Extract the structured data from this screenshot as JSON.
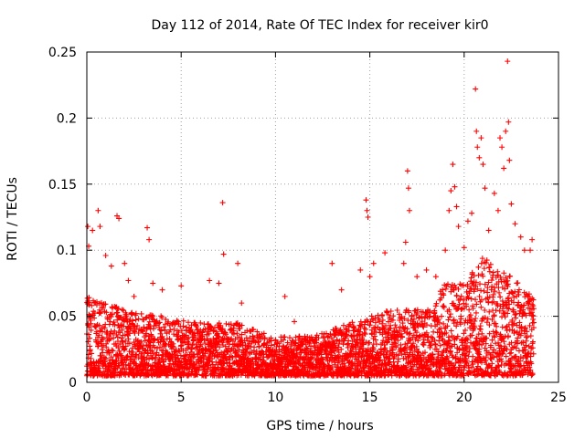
{
  "chart_data": {
    "type": "scatter",
    "title": "Day 112 of 2014, Rate Of TEC Index for receiver kir0",
    "xlabel": "GPS time / hours",
    "ylabel": "ROTI / TECUs",
    "xlim": [
      0,
      25
    ],
    "ylim": [
      0,
      0.25
    ],
    "x_ticks": [
      0,
      5,
      10,
      15,
      20,
      25
    ],
    "y_ticks": [
      0,
      0.05,
      0.1,
      0.15,
      0.2,
      0.25
    ],
    "x_tick_labels": [
      "0",
      "5",
      "10",
      "15",
      "20",
      "25"
    ],
    "y_tick_labels": [
      "0",
      "0.05",
      "0.1",
      "0.15",
      "0.2",
      "0.25"
    ],
    "grid": true,
    "marker": "+",
    "series": [
      {
        "name": "ROTI",
        "color": "#ff0000",
        "baseline_profile": {
          "hours": [
            0,
            2,
            4,
            6,
            8,
            10,
            12,
            14,
            16,
            18,
            19,
            20,
            21,
            22,
            23,
            23.7
          ],
          "typical_max": [
            0.06,
            0.05,
            0.045,
            0.04,
            0.04,
            0.03,
            0.03,
            0.04,
            0.05,
            0.05,
            0.07,
            0.07,
            0.09,
            0.08,
            0.07,
            0.06
          ]
        },
        "points": [
          [
            0.05,
            0.118
          ],
          [
            0.1,
            0.103
          ],
          [
            0.3,
            0.115
          ],
          [
            0.6,
            0.13
          ],
          [
            0.7,
            0.118
          ],
          [
            1.0,
            0.096
          ],
          [
            1.3,
            0.088
          ],
          [
            1.6,
            0.126
          ],
          [
            1.7,
            0.124
          ],
          [
            2.0,
            0.09
          ],
          [
            2.2,
            0.077
          ],
          [
            2.5,
            0.065
          ],
          [
            3.2,
            0.117
          ],
          [
            3.3,
            0.108
          ],
          [
            3.5,
            0.075
          ],
          [
            4.0,
            0.07
          ],
          [
            5.0,
            0.073
          ],
          [
            6.5,
            0.077
          ],
          [
            7.0,
            0.075
          ],
          [
            7.2,
            0.136
          ],
          [
            7.25,
            0.097
          ],
          [
            8.0,
            0.09
          ],
          [
            8.2,
            0.06
          ],
          [
            10.5,
            0.065
          ],
          [
            11.0,
            0.046
          ],
          [
            13.0,
            0.09
          ],
          [
            13.5,
            0.07
          ],
          [
            14.5,
            0.085
          ],
          [
            14.8,
            0.138
          ],
          [
            14.85,
            0.13
          ],
          [
            14.9,
            0.125
          ],
          [
            15.0,
            0.08
          ],
          [
            15.2,
            0.09
          ],
          [
            15.8,
            0.098
          ],
          [
            16.8,
            0.09
          ],
          [
            16.9,
            0.106
          ],
          [
            17.0,
            0.16
          ],
          [
            17.05,
            0.147
          ],
          [
            17.1,
            0.13
          ],
          [
            17.5,
            0.08
          ],
          [
            18.0,
            0.085
          ],
          [
            18.5,
            0.08
          ],
          [
            19.0,
            0.1
          ],
          [
            19.2,
            0.13
          ],
          [
            19.3,
            0.145
          ],
          [
            19.4,
            0.165
          ],
          [
            19.5,
            0.148
          ],
          [
            19.6,
            0.133
          ],
          [
            19.7,
            0.118
          ],
          [
            20.0,
            0.102
          ],
          [
            20.2,
            0.122
          ],
          [
            20.4,
            0.128
          ],
          [
            20.6,
            0.222
          ],
          [
            20.65,
            0.19
          ],
          [
            20.7,
            0.178
          ],
          [
            20.8,
            0.17
          ],
          [
            20.9,
            0.185
          ],
          [
            21.0,
            0.165
          ],
          [
            21.1,
            0.147
          ],
          [
            21.3,
            0.115
          ],
          [
            21.6,
            0.143
          ],
          [
            21.8,
            0.13
          ],
          [
            21.9,
            0.185
          ],
          [
            22.0,
            0.178
          ],
          [
            22.1,
            0.162
          ],
          [
            22.2,
            0.19
          ],
          [
            22.3,
            0.243
          ],
          [
            22.35,
            0.197
          ],
          [
            22.4,
            0.168
          ],
          [
            22.5,
            0.135
          ],
          [
            22.7,
            0.12
          ],
          [
            23.0,
            0.11
          ],
          [
            23.2,
            0.1
          ],
          [
            23.5,
            0.1
          ],
          [
            23.6,
            0.108
          ]
        ]
      }
    ]
  }
}
